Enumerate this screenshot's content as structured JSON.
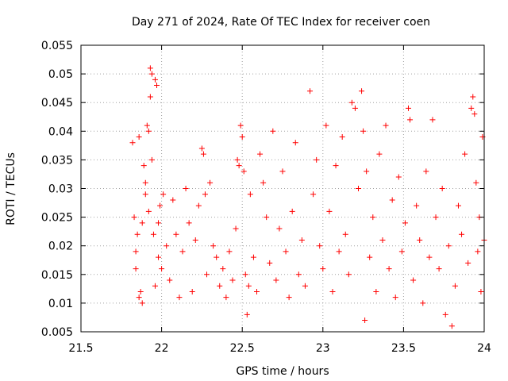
{
  "chart_data": {
    "type": "scatter",
    "title": "Day 271 of 2024, Rate Of TEC Index for receiver coen",
    "xlabel": "GPS time / hours",
    "ylabel": "ROTI / TECUs",
    "xlim": [
      21.5,
      24
    ],
    "ylim": [
      0.005,
      0.055
    ],
    "x_ticks": [
      21.5,
      22,
      22.5,
      23,
      23.5,
      24
    ],
    "x_tick_labels": [
      "21.5",
      "22",
      "22.5",
      "23",
      "23.5",
      "24"
    ],
    "y_ticks": [
      0.005,
      0.01,
      0.015,
      0.02,
      0.025,
      0.03,
      0.035,
      0.04,
      0.045,
      0.05,
      0.055
    ],
    "y_tick_labels": [
      "0.005",
      "0.01",
      "0.015",
      "0.02",
      "0.025",
      "0.03",
      "0.035",
      "0.04",
      "0.045",
      "0.05",
      "0.055"
    ],
    "grid": true,
    "marker": "+",
    "color": "#ff0000",
    "series": [
      {
        "name": "ROTI",
        "points": [
          [
            21.82,
            0.038
          ],
          [
            21.83,
            0.025
          ],
          [
            21.84,
            0.019
          ],
          [
            21.85,
            0.022
          ],
          [
            21.86,
            0.039
          ],
          [
            21.87,
            0.012
          ],
          [
            21.88,
            0.024
          ],
          [
            21.89,
            0.034
          ],
          [
            21.9,
            0.029
          ],
          [
            21.91,
            0.041
          ],
          [
            21.92,
            0.04
          ],
          [
            21.93,
            0.051
          ],
          [
            21.94,
            0.05
          ],
          [
            21.93,
            0.046
          ],
          [
            21.96,
            0.049
          ],
          [
            21.97,
            0.048
          ],
          [
            21.95,
            0.022
          ],
          [
            21.98,
            0.018
          ],
          [
            21.99,
            0.027
          ],
          [
            22.0,
            0.016
          ],
          [
            21.84,
            0.016
          ],
          [
            21.86,
            0.011
          ],
          [
            21.88,
            0.01
          ],
          [
            21.9,
            0.031
          ],
          [
            21.92,
            0.026
          ],
          [
            21.94,
            0.035
          ],
          [
            21.96,
            0.013
          ],
          [
            21.98,
            0.024
          ],
          [
            22.01,
            0.029
          ],
          [
            22.03,
            0.02
          ],
          [
            22.05,
            0.014
          ],
          [
            22.07,
            0.028
          ],
          [
            22.09,
            0.022
          ],
          [
            22.11,
            0.011
          ],
          [
            22.13,
            0.019
          ],
          [
            22.15,
            0.03
          ],
          [
            22.17,
            0.024
          ],
          [
            22.19,
            0.012
          ],
          [
            22.21,
            0.021
          ],
          [
            22.23,
            0.027
          ],
          [
            22.25,
            0.037
          ],
          [
            22.26,
            0.036
          ],
          [
            22.27,
            0.029
          ],
          [
            22.28,
            0.015
          ],
          [
            22.3,
            0.031
          ],
          [
            22.32,
            0.02
          ],
          [
            22.34,
            0.018
          ],
          [
            22.36,
            0.013
          ],
          [
            22.38,
            0.016
          ],
          [
            22.4,
            0.011
          ],
          [
            22.42,
            0.019
          ],
          [
            22.44,
            0.014
          ],
          [
            22.46,
            0.023
          ],
          [
            22.47,
            0.035
          ],
          [
            22.48,
            0.034
          ],
          [
            22.49,
            0.041
          ],
          [
            22.5,
            0.039
          ],
          [
            22.51,
            0.033
          ],
          [
            22.52,
            0.015
          ],
          [
            22.53,
            0.008
          ],
          [
            22.54,
            0.013
          ],
          [
            22.55,
            0.029
          ],
          [
            22.57,
            0.018
          ],
          [
            22.59,
            0.012
          ],
          [
            22.61,
            0.036
          ],
          [
            22.63,
            0.031
          ],
          [
            22.65,
            0.025
          ],
          [
            22.67,
            0.017
          ],
          [
            22.69,
            0.04
          ],
          [
            22.71,
            0.014
          ],
          [
            22.73,
            0.023
          ],
          [
            22.75,
            0.033
          ],
          [
            22.77,
            0.019
          ],
          [
            22.79,
            0.011
          ],
          [
            22.81,
            0.026
          ],
          [
            22.83,
            0.038
          ],
          [
            22.85,
            0.015
          ],
          [
            22.87,
            0.021
          ],
          [
            22.89,
            0.013
          ],
          [
            22.92,
            0.047
          ],
          [
            22.94,
            0.029
          ],
          [
            22.96,
            0.035
          ],
          [
            22.98,
            0.02
          ],
          [
            23.0,
            0.016
          ],
          [
            23.02,
            0.041
          ],
          [
            23.04,
            0.026
          ],
          [
            23.06,
            0.012
          ],
          [
            23.08,
            0.034
          ],
          [
            23.1,
            0.019
          ],
          [
            23.12,
            0.039
          ],
          [
            23.14,
            0.022
          ],
          [
            23.16,
            0.015
          ],
          [
            23.18,
            0.045
          ],
          [
            23.2,
            0.044
          ],
          [
            23.22,
            0.03
          ],
          [
            23.24,
            0.047
          ],
          [
            23.25,
            0.04
          ],
          [
            23.26,
            0.007
          ],
          [
            23.27,
            0.033
          ],
          [
            23.29,
            0.018
          ],
          [
            23.31,
            0.025
          ],
          [
            23.33,
            0.012
          ],
          [
            23.35,
            0.036
          ],
          [
            23.37,
            0.021
          ],
          [
            23.39,
            0.041
          ],
          [
            23.41,
            0.016
          ],
          [
            23.43,
            0.028
          ],
          [
            23.45,
            0.011
          ],
          [
            23.47,
            0.032
          ],
          [
            23.49,
            0.019
          ],
          [
            23.51,
            0.024
          ],
          [
            23.53,
            0.044
          ],
          [
            23.54,
            0.042
          ],
          [
            23.56,
            0.014
          ],
          [
            23.58,
            0.027
          ],
          [
            23.6,
            0.021
          ],
          [
            23.62,
            0.01
          ],
          [
            23.64,
            0.033
          ],
          [
            23.66,
            0.018
          ],
          [
            23.68,
            0.042
          ],
          [
            23.7,
            0.025
          ],
          [
            23.72,
            0.016
          ],
          [
            23.74,
            0.03
          ],
          [
            23.76,
            0.008
          ],
          [
            23.78,
            0.02
          ],
          [
            23.8,
            0.006
          ],
          [
            23.82,
            0.013
          ],
          [
            23.84,
            0.027
          ],
          [
            23.86,
            0.022
          ],
          [
            23.88,
            0.036
          ],
          [
            23.9,
            0.017
          ],
          [
            23.92,
            0.044
          ],
          [
            23.93,
            0.046
          ],
          [
            23.94,
            0.043
          ],
          [
            23.95,
            0.031
          ],
          [
            23.96,
            0.019
          ],
          [
            23.97,
            0.025
          ],
          [
            23.98,
            0.012
          ],
          [
            23.99,
            0.039
          ],
          [
            24.0,
            0.021
          ]
        ]
      }
    ]
  }
}
